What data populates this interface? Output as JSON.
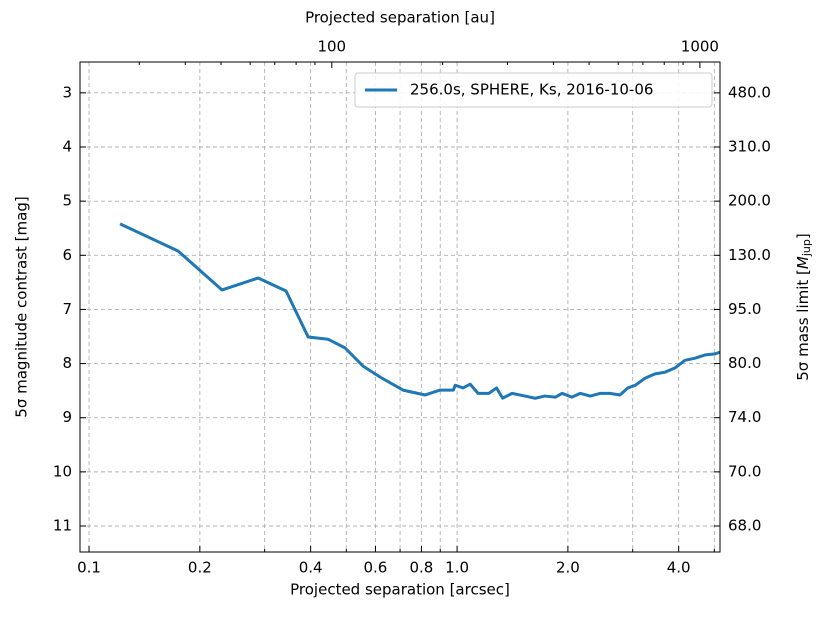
{
  "chart_data": {
    "type": "line",
    "xlabel": "Projected separation [arcsec]",
    "ylabel": "5σ magnitude contrast [mag]",
    "x2label": "Projected separation [au]",
    "y2label": [
      "5σ mass limit [",
      "M",
      "jup",
      "]"
    ],
    "xscale": "log",
    "x2scale": "log",
    "xlim": [
      0.0945,
      5.18
    ],
    "ylim": [
      11.48,
      2.43
    ],
    "x2lim": [
      20.7,
      1134
    ],
    "xticks": [
      0.1,
      0.2,
      0.4,
      0.6,
      0.8,
      {
        "value": 1,
        "label": "1.0"
      },
      {
        "value": 2,
        "label": "2.0"
      },
      {
        "value": 4,
        "label": "4.0"
      }
    ],
    "xminor": [
      0.3,
      0.5,
      0.7,
      0.9,
      3,
      5
    ],
    "x2ticks": [
      100,
      1000
    ],
    "x2minor": [
      30,
      40,
      50,
      60,
      70,
      80,
      90,
      200,
      300,
      400,
      500,
      600,
      700,
      800,
      900
    ],
    "yticks": [
      3,
      4,
      5,
      6,
      7,
      8,
      9,
      10,
      11
    ],
    "y2ticks": [
      {
        "value": 480,
        "label": "480.0"
      },
      {
        "value": 310,
        "label": "310.0"
      },
      {
        "value": 200,
        "label": "200.0"
      },
      {
        "value": 130,
        "label": "130.0"
      },
      {
        "value": 95,
        "label": "95.0"
      },
      {
        "value": 80,
        "label": "80.0"
      },
      {
        "value": 74,
        "label": "74.0"
      },
      {
        "value": 70,
        "label": "70.0"
      },
      {
        "value": 68,
        "label": "68.0"
      }
    ],
    "grid": true,
    "legend": "upper right",
    "x": [
      0.1214,
      0.1745,
      0.2298,
      0.288,
      0.343,
      0.394,
      0.446,
      0.496,
      0.556,
      0.618,
      0.713,
      0.819,
      0.899,
      0.977,
      0.988,
      1.038,
      1.085,
      1.14,
      1.22,
      1.28,
      1.33,
      1.41,
      1.53,
      1.63,
      1.73,
      1.85,
      1.93,
      2.05,
      2.16,
      2.3,
      2.45,
      2.6,
      2.77,
      2.91,
      3.05,
      3.24,
      3.45,
      3.67,
      3.91,
      4.16,
      4.43,
      4.72,
      5.03,
      5.18
    ],
    "series": [
      {
        "name": "256.0s, SPHERE, Ks, 2016-10-06",
        "color": "#1f77b4",
        "values": [
          5.42,
          5.92,
          6.64,
          6.42,
          6.66,
          7.51,
          7.55,
          7.71,
          8.05,
          8.25,
          8.49,
          8.58,
          8.49,
          8.49,
          8.4,
          8.45,
          8.38,
          8.55,
          8.55,
          8.45,
          8.64,
          8.55,
          8.6,
          8.64,
          8.6,
          8.62,
          8.55,
          8.62,
          8.55,
          8.6,
          8.55,
          8.55,
          8.58,
          8.45,
          8.4,
          8.27,
          8.19,
          8.16,
          8.08,
          7.94,
          7.9,
          7.84,
          7.82,
          7.79
        ]
      }
    ]
  }
}
